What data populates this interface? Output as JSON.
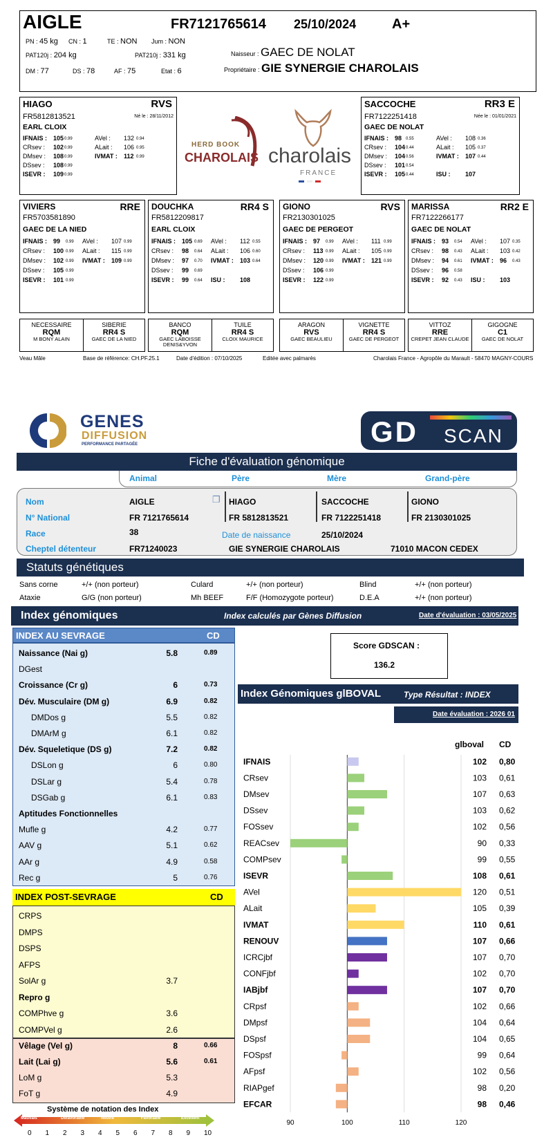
{
  "top": {
    "name": "AIGLE",
    "national_id": "FR7121765614",
    "birth_date": "25/10/2024",
    "grade": "A+",
    "pn_label": "PN : ",
    "pn": "45 kg",
    "cn_label": "CN : ",
    "cn": "1",
    "te_label": "TE : ",
    "te": "NON",
    "jum_label": "Jum : ",
    "jum": "NON",
    "pat120_label": "PAT120j : ",
    "pat120": "204 kg",
    "pat210_label": "PAT210j : ",
    "pat210": "331 kg",
    "naisseur_label": "Naisseur : ",
    "naisseur": "GAEC DE NOLAT",
    "dm_label": "DM : ",
    "dm": "77",
    "ds_label": "DS : ",
    "ds": "78",
    "af_label": "AF : ",
    "af": "75",
    "etat_label": "Etat : ",
    "etat": "6",
    "proprietaire_label": "Propriétaire : ",
    "proprietaire": "GIE SYNERGIE CHAROLAIS"
  },
  "logos": {
    "herdbook_1": "HERD BOOK",
    "herdbook_2": "CHAROLAIS",
    "charolais": "charolais",
    "france": "FRANCE"
  },
  "parents": [
    {
      "name": "HIAGO",
      "code": "RVS",
      "id": "FR5812813521",
      "born": "Né le : 28/11/2012",
      "breeder": "EARL CLOIX",
      "l1": [
        "IFNAIS :",
        "105",
        "0.99",
        "AVel :",
        "132",
        "0.94"
      ],
      "l2": [
        "CRsev :",
        "102",
        "0.99",
        "ALait :",
        "106",
        "0.95"
      ],
      "l3": [
        "DMsev :",
        "108",
        "0.99",
        "IVMAT :",
        "112",
        "0.99"
      ],
      "l4": [
        "DSsev :",
        "108",
        "0.99",
        "",
        "",
        ""
      ],
      "l5": [
        "ISEVR :",
        "109",
        "0.99",
        "",
        "",
        ""
      ]
    },
    {
      "name": "SACCOCHE",
      "code": "RR3 E",
      "id": "FR7122251418",
      "born": "Née le : 01/01/2021",
      "breeder": "GAEC DE NOLAT",
      "l1": [
        "IFNAIS :",
        "98",
        "0.55",
        "AVel :",
        "108",
        "0.36"
      ],
      "l2": [
        "CRsev :",
        "104",
        "0.44",
        "ALait :",
        "105",
        "0.37"
      ],
      "l3": [
        "DMsev :",
        "104",
        "0.56",
        "IVMAT :",
        "107",
        "0.44"
      ],
      "l4": [
        "DSsev :",
        "101",
        "0.54",
        "",
        "",
        ""
      ],
      "l5": [
        "ISEVR :",
        "105",
        "0.44",
        "ISU :",
        "107",
        ""
      ]
    }
  ],
  "grandparents": [
    {
      "name": "VIVIERS",
      "code": "RRE",
      "id": "FR5703581890",
      "breeder": "GAEC DE LA NIED",
      "l1": [
        "IFNAIS :",
        "99",
        "0.99",
        "AVel :",
        "107",
        "0.99"
      ],
      "l2": [
        "CRsev :",
        "100",
        "0.99",
        "ALait :",
        "115",
        "0.99"
      ],
      "l3": [
        "DMsev :",
        "102",
        "0.99",
        "IVMAT :",
        "109",
        "0.99"
      ],
      "l4": [
        "DSsev :",
        "105",
        "0.99",
        "",
        "",
        ""
      ],
      "l5": [
        "ISEVR :",
        "101",
        "0.99",
        "",
        "",
        ""
      ]
    },
    {
      "name": "DOUCHKA",
      "code": "RR4 S",
      "id": "FR5812209817",
      "breeder": "EARL CLOIX",
      "l1": [
        "IFNAIS :",
        "105",
        "0.69",
        "AVel :",
        "112",
        "0.55"
      ],
      "l2": [
        "CRsev :",
        "98",
        "0.64",
        "ALait :",
        "106",
        "0.60"
      ],
      "l3": [
        "DMsev :",
        "97",
        "0.70",
        "IVMAT :",
        "103",
        "0.64"
      ],
      "l4": [
        "DSsev :",
        "99",
        "0.69",
        "",
        "",
        ""
      ],
      "l5": [
        "ISEVR :",
        "99",
        "0.64",
        "ISU :",
        "108",
        ""
      ]
    },
    {
      "name": "GIONO",
      "code": "RVS",
      "id": "FR2130301025",
      "breeder": "GAEC DE PERGEOT",
      "l1": [
        "IFNAIS :",
        "97",
        "0.99",
        "AVel :",
        "111",
        "0.99"
      ],
      "l2": [
        "CRsev :",
        "113",
        "0.99",
        "ALait :",
        "105",
        "0.99"
      ],
      "l3": [
        "DMsev :",
        "120",
        "0.99",
        "IVMAT :",
        "121",
        "0.99"
      ],
      "l4": [
        "DSsev :",
        "106",
        "0.99",
        "",
        "",
        ""
      ],
      "l5": [
        "ISEVR :",
        "122",
        "0.99",
        "",
        "",
        ""
      ]
    },
    {
      "name": "MARISSA",
      "code": "RR2 E",
      "id": "FR7122266177",
      "breeder": "GAEC DE NOLAT",
      "l1": [
        "IFNAIS :",
        "93",
        "0.54",
        "AVel :",
        "107",
        "0.35"
      ],
      "l2": [
        "CRsev :",
        "98",
        "0.43",
        "ALait :",
        "103",
        "0.42"
      ],
      "l3": [
        "DMsev :",
        "94",
        "0.61",
        "IVMAT :",
        "96",
        "0.43"
      ],
      "l4": [
        "DSsev :",
        "96",
        "0.58",
        "",
        "",
        ""
      ],
      "l5": [
        "ISEVR :",
        "92",
        "0.43",
        "ISU :",
        "103",
        ""
      ]
    }
  ],
  "ancestors": [
    {
      "name": "NECESSAIRE",
      "code": "RQM",
      "breeder": "M   BONY ALAIN"
    },
    {
      "name": "SIBERIE",
      "code": "RR4 S",
      "breeder": "GAEC DE LA NIED"
    },
    {
      "name": "BANCO",
      "code": "RQM",
      "breeder": "GAEC LABOISSE DENIS&YVON"
    },
    {
      "name": "TUILE",
      "code": "RR4 S",
      "breeder": "CLOIX MAURICE"
    },
    {
      "name": "ARAGON",
      "code": "RVS",
      "breeder": "GAEC BEAULIEU"
    },
    {
      "name": "VIGNETTE",
      "code": "RR4 S",
      "breeder": "GAEC DE PERGEOT"
    },
    {
      "name": "VITTOZ",
      "code": "RRE",
      "breeder": "CREPET JEAN CLAUDE"
    },
    {
      "name": "GIGOGNE",
      "code": "C1",
      "breeder": "GAEC DE NOLAT"
    }
  ],
  "footer1": {
    "sex": "Veau Mâle",
    "base": "Base de référence: CH.PF.25.1",
    "edition": "Date d'édition : 07/10/2025",
    "palmares": "Editée avec palmarès",
    "address": "Charolais France - Agropôle du Marault - 58470 MAGNY-COURS"
  },
  "gd": {
    "logo_genes": "GENES",
    "logo_diffusion": "DIFFUSION",
    "logo_tag": "PERFORMANCE PARTAGÉE",
    "logo_gd": "GD",
    "logo_scan": "SCAN",
    "title": "Fiche d'évaluation génomique",
    "col_animal": "Animal",
    "col_pere": "Père",
    "col_mere": "Mère",
    "col_gp": "Grand-père",
    "lbl_nom": "Nom",
    "lbl_national": "N° National",
    "lbl_race": "Race",
    "lbl_cheptel": "Cheptel détenteur",
    "animal_nom": "AIGLE",
    "animal_id": "FR 7121765614",
    "race": "38",
    "cheptel": "FR71240023",
    "pere_nom": "HIAGO",
    "pere_id": "FR 5812813521",
    "mere_nom": "SACCOCHE",
    "mere_id": "FR 7122251418",
    "gp_nom": "GIONO",
    "gp_id": "FR 2130301025",
    "lbl_naissance": "Date de naissance",
    "naissance": "25/10/2024",
    "owner": "GIE SYNERGIE CHAROLAIS",
    "city": "71010 MACON CEDEX"
  },
  "statuts": {
    "title": "Statuts génétiques",
    "items": [
      [
        "Sans corne",
        "+/+ (non porteur)",
        "Culard",
        "+/+ (non porteur)",
        "Blind",
        "+/+ (non porteur)"
      ],
      [
        "Ataxie",
        "G/G (non porteur)",
        "Mh BEEF",
        "F/F (Homozygote porteur)",
        "D.E.A",
        "+/+ (non porteur)"
      ]
    ]
  },
  "index": {
    "title": "Index génomiques",
    "calc": "Index calculés par Gènes Diffusion",
    "date": "Date d'évaluation : 03/05/2025",
    "sevrage_title": "INDEX AU SEVRAGE",
    "cd": "CD",
    "sevrage": [
      {
        "n": "Naissance (Nai g)",
        "v": "5.8",
        "c": "0.89",
        "b": true
      },
      {
        "n": "DGest",
        "v": "",
        "c": "",
        "b": false
      },
      {
        "n": "Croissance (Cr g)",
        "v": "6",
        "c": "0.73",
        "b": true
      },
      {
        "n": "Dév. Musculaire (DM g)",
        "v": "6.9",
        "c": "0.82",
        "b": true
      },
      {
        "n": "DMDos g",
        "v": "5.5",
        "c": "0.82",
        "b": false,
        "i": true
      },
      {
        "n": "DMArM g",
        "v": "6.1",
        "c": "0.82",
        "b": false,
        "i": true
      },
      {
        "n": "Dév. Squeletique (DS g)",
        "v": "7.2",
        "c": "0.82",
        "b": true
      },
      {
        "n": "DSLon g",
        "v": "6",
        "c": "0.80",
        "b": false,
        "i": true
      },
      {
        "n": "DSLar g",
        "v": "5.4",
        "c": "0.78",
        "b": false,
        "i": true
      },
      {
        "n": "DSGab g",
        "v": "6.1",
        "c": "0.83",
        "b": false,
        "i": true
      },
      {
        "n": "Aptitudes Fonctionnelles",
        "v": "",
        "c": "",
        "b": true
      },
      {
        "n": "Mufle g",
        "v": "4.2",
        "c": "0.77",
        "b": false
      },
      {
        "n": "AAV g",
        "v": "5.1",
        "c": "0.62",
        "b": false
      },
      {
        "n": "AAr g",
        "v": "4.9",
        "c": "0.58",
        "b": false
      },
      {
        "n": "Rec g",
        "v": "5",
        "c": "0.76",
        "b": false
      }
    ],
    "post_title": "INDEX POST-SEVRAGE",
    "post": [
      {
        "n": "CRPS",
        "v": "",
        "c": "",
        "b": false
      },
      {
        "n": "DMPS",
        "v": "",
        "c": "",
        "b": false
      },
      {
        "n": "DSPS",
        "v": "",
        "c": "",
        "b": false
      },
      {
        "n": "AFPS",
        "v": "",
        "c": "",
        "b": false
      },
      {
        "n": "SolAr g",
        "v": "3.7",
        "c": "",
        "b": false
      },
      {
        "n": "Repro g",
        "v": "",
        "c": "",
        "b": true
      },
      {
        "n": "COMPhve g",
        "v": "3.6",
        "c": "",
        "b": false
      },
      {
        "n": "COMPVel g",
        "v": "2.6",
        "c": "",
        "b": false
      }
    ],
    "velage": [
      {
        "n": "Vêlage (Vel g)",
        "v": "8",
        "c": "0.66",
        "b": true
      },
      {
        "n": "Lait (Lai g)",
        "v": "5.6",
        "c": "0.61",
        "b": true
      },
      {
        "n": "LoM g",
        "v": "5.3",
        "c": "",
        "b": false
      },
      {
        "n": "FoT g",
        "v": "4.9",
        "c": "",
        "b": false
      }
    ],
    "notation_title": "Système de notation des Index",
    "notation_words": [
      "Mauvais",
      "Défavorable",
      "Neutre",
      "Favorable",
      "Excellent"
    ],
    "notation_scale": [
      "0",
      "1",
      "2",
      "3",
      "4",
      "5",
      "6",
      "7",
      "8",
      "9",
      "10"
    ]
  },
  "gdscan": {
    "label": "Score GDSCAN :",
    "value": "136.2"
  },
  "igb": {
    "title": "Index Génomiques glBOVAL",
    "type": "Type Résultat : INDEX",
    "date": "Date évaluation : 2026 01",
    "col_val": "glboval",
    "col_cd": "CD"
  },
  "chart_data": {
    "type": "bar",
    "orientation": "horizontal",
    "baseline": 100,
    "xlim": [
      90,
      120
    ],
    "xticks": [
      "90",
      "100",
      "110",
      "120"
    ],
    "rows": [
      {
        "label": "IFNAIS",
        "value": 102,
        "value_text": "102",
        "cd": "0,80",
        "bold": true,
        "color": "#c8c8f0"
      },
      {
        "label": "CRsev",
        "value": 103,
        "value_text": "103",
        "cd": "0,61",
        "bold": false,
        "color": "#9bd17a"
      },
      {
        "label": "DMsev",
        "value": 107,
        "value_text": "107",
        "cd": "0,63",
        "bold": false,
        "color": "#9bd17a"
      },
      {
        "label": "DSsev",
        "value": 103,
        "value_text": "103",
        "cd": "0,62",
        "bold": false,
        "color": "#9bd17a"
      },
      {
        "label": "FOSsev",
        "value": 102,
        "value_text": "102",
        "cd": "0,56",
        "bold": false,
        "color": "#9bd17a"
      },
      {
        "label": "REACsev",
        "value": 90,
        "value_text": "90",
        "cd": "0,33",
        "bold": false,
        "color": "#9bd17a"
      },
      {
        "label": "COMPsev",
        "value": 99,
        "value_text": "99",
        "cd": "0,55",
        "bold": false,
        "color": "#9bd17a"
      },
      {
        "label": "ISEVR",
        "value": 108,
        "value_text": "108",
        "cd": "0,61",
        "bold": true,
        "color": "#9bd17a"
      },
      {
        "label": "AVel",
        "value": 120,
        "value_text": "120",
        "cd": "0,51",
        "bold": false,
        "color": "#ffd966"
      },
      {
        "label": "ALait",
        "value": 105,
        "value_text": "105",
        "cd": "0,39",
        "bold": false,
        "color": "#ffd966"
      },
      {
        "label": "IVMAT",
        "value": 110,
        "value_text": "110",
        "cd": "0,61",
        "bold": true,
        "color": "#ffd966"
      },
      {
        "label": "RENOUV",
        "value": 107,
        "value_text": "107",
        "cd": "0,66",
        "bold": true,
        "color": "#4472c4"
      },
      {
        "label": "ICRCjbf",
        "value": 107,
        "value_text": "107",
        "cd": "0,70",
        "bold": false,
        "color": "#7030a0"
      },
      {
        "label": "CONFjbf",
        "value": 102,
        "value_text": "102",
        "cd": "0,70",
        "bold": false,
        "color": "#7030a0"
      },
      {
        "label": "IABjbf",
        "value": 107,
        "value_text": "107",
        "cd": "0,70",
        "bold": true,
        "color": "#7030a0"
      },
      {
        "label": "CRpsf",
        "value": 102,
        "value_text": "102",
        "cd": "0,66",
        "bold": false,
        "color": "#f4b183"
      },
      {
        "label": "DMpsf",
        "value": 104,
        "value_text": "104",
        "cd": "0,64",
        "bold": false,
        "color": "#f4b183"
      },
      {
        "label": "DSpsf",
        "value": 104,
        "value_text": "104",
        "cd": "0,65",
        "bold": false,
        "color": "#f4b183"
      },
      {
        "label": "FOSpsf",
        "value": 99,
        "value_text": "99",
        "cd": "0,64",
        "bold": false,
        "color": "#f4b183"
      },
      {
        "label": "AFpsf",
        "value": 102,
        "value_text": "102",
        "cd": "0,56",
        "bold": false,
        "color": "#f4b183"
      },
      {
        "label": "RIAPgef",
        "value": 98,
        "value_text": "98",
        "cd": "0,20",
        "bold": false,
        "color": "#f4b183"
      },
      {
        "label": "EFCAR",
        "value": 98,
        "value_text": "98",
        "cd": "0,46",
        "bold": true,
        "color": "#f4b183"
      }
    ]
  }
}
